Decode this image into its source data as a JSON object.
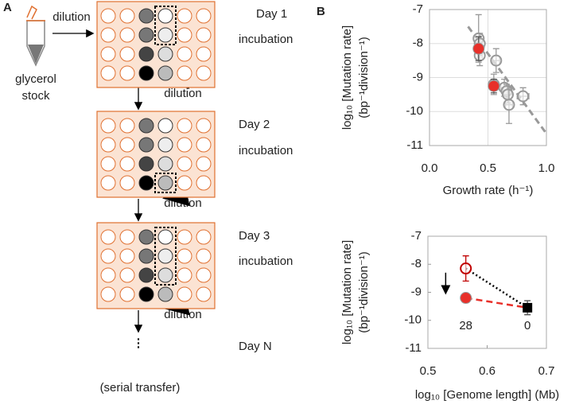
{
  "diagram": {
    "panel_label": "A",
    "source": [
      "glycerol",
      "stock"
    ],
    "steps": [
      {
        "day": "Day 1",
        "action": "incubation"
      },
      {
        "day": "Day 2",
        "action": "incubation"
      },
      {
        "day": "Day 3",
        "action": "incubation"
      }
    ],
    "dilution_labels": [
      "dilution",
      "dilution",
      "dilution",
      "dilution"
    ],
    "final_day": "Day N",
    "final_note": "(serial transfer)"
  },
  "panel_b_label": "B",
  "chart_data": [
    {
      "type": "scatter",
      "x_label": "Growth rate (h⁻¹)",
      "y_label": [
        "log₁₀ [Mutation rate]",
        "(bp⁻¹division⁻¹)"
      ],
      "xlim": [
        0,
        1
      ],
      "xticks": [
        {
          "value": 0,
          "label": "0.0"
        },
        {
          "value": 0.5,
          "label": "0.5"
        },
        {
          "value": 1,
          "label": "1.0"
        }
      ],
      "ylim": [
        -11,
        -7
      ],
      "yticks": [
        -11,
        -10,
        -9,
        -8,
        -7
      ],
      "grid": true,
      "series": [
        {
          "marker": "open-circle",
          "color": "#999999",
          "x": [
            0.42,
            0.43,
            0.43,
            0.57,
            0.55,
            0.64,
            0.66,
            0.67,
            0.68,
            0.8
          ],
          "values": [
            -7.85,
            -8.0,
            -8.35,
            -8.5,
            -9.2,
            -9.3,
            -9.4,
            -9.5,
            -9.8,
            -9.55
          ],
          "xerr": [
            0.02,
            0.02,
            0.02,
            0.03,
            0.03,
            0.03,
            0.03,
            0.04,
            0.03,
            0.05
          ],
          "yerr": [
            0.7,
            0.3,
            0.3,
            0.35,
            0.3,
            0.25,
            0.2,
            0.25,
            0.55,
            0.25
          ]
        },
        {
          "marker": "circle",
          "color": "#e8302a",
          "x": [
            0.42,
            0.55
          ],
          "values": [
            -8.15,
            -9.25
          ],
          "xerr": [
            0.02,
            0.02
          ],
          "yerr": [
            0.35,
            0.2
          ]
        }
      ],
      "trend_line": {
        "x": [
          0.33,
          0.99
        ],
        "values": [
          -7.5,
          -10.6
        ],
        "color": "#999999",
        "style": "dashed"
      }
    },
    {
      "type": "scatter",
      "x_label": "log₁₀ [Genome length] (Mb)",
      "y_label": [
        "log₁₀ [Mutation rate]",
        "(bp⁻¹division⁻¹)"
      ],
      "xlim": [
        0.5,
        0.7
      ],
      "xticks": [
        0.5,
        0.6,
        0.7
      ],
      "ylim": [
        -11,
        -7
      ],
      "yticks": [
        -11,
        -10,
        -9,
        -8,
        -7
      ],
      "grid": false,
      "series": [
        {
          "marker": "open-circle",
          "color": "#c00000",
          "x": [
            0.564
          ],
          "values": [
            -8.15
          ],
          "yerr": [
            0.45
          ]
        },
        {
          "marker": "circle",
          "color": "#e8302a",
          "x": [
            0.564
          ],
          "values": [
            -9.2
          ],
          "yerr": [
            0.15
          ]
        },
        {
          "marker": "square",
          "color": "#000000",
          "x": [
            0.668
          ],
          "values": [
            -9.55
          ],
          "yerr": [
            0.25
          ]
        }
      ],
      "connectors": [
        {
          "from": 0,
          "to": 2,
          "style": "dotted",
          "color": "#000000"
        },
        {
          "from": 1,
          "to": 2,
          "style": "dashed",
          "color": "#e8302a"
        }
      ],
      "annotations": [
        {
          "text": "28",
          "x": 0.564,
          "y": -10.2
        },
        {
          "text": "0",
          "x": 0.668,
          "y": -10.2
        }
      ],
      "arrow": {
        "x": 0.53,
        "from": -8.3,
        "to": -9.0
      }
    }
  ]
}
